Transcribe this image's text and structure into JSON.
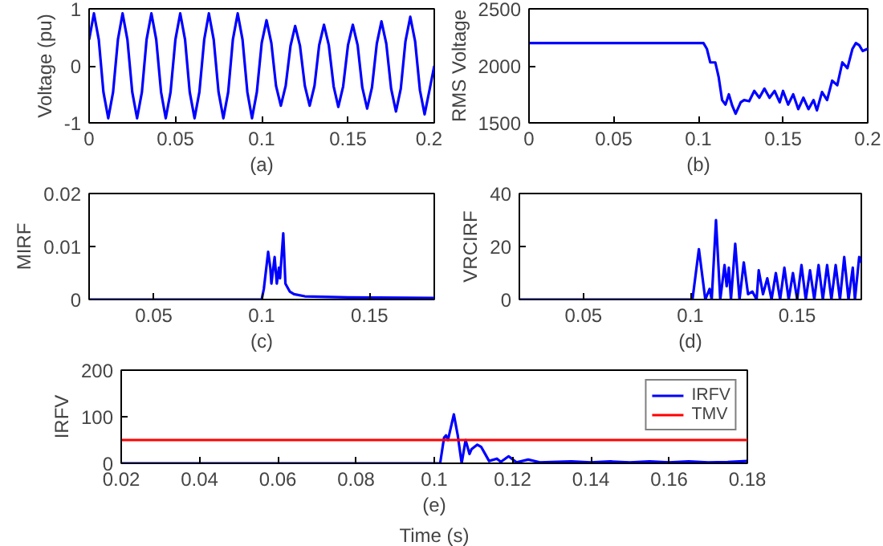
{
  "chart_data": [
    {
      "type": "line",
      "xlabel": "(a)",
      "ylabel": "Voltage (pu)",
      "xlim": [
        0,
        0.2
      ],
      "ylim": [
        -1,
        1
      ],
      "xticks": [
        0,
        0.05,
        0.1,
        0.15,
        0.2
      ],
      "yticks": [
        -1,
        0,
        1
      ],
      "x": [
        0,
        0.0028,
        0.0056,
        0.0083,
        0.0111,
        0.0139,
        0.0167,
        0.0194,
        0.0222,
        0.025,
        0.0278,
        0.0306,
        0.0333,
        0.0361,
        0.0389,
        0.0417,
        0.0444,
        0.0472,
        0.05,
        0.0528,
        0.0556,
        0.0583,
        0.0611,
        0.0639,
        0.0667,
        0.0694,
        0.0722,
        0.075,
        0.0778,
        0.0806,
        0.0833,
        0.0861,
        0.0889,
        0.0917,
        0.0944,
        0.0972,
        0.1,
        0.1028,
        0.1056,
        0.1083,
        0.1111,
        0.1139,
        0.1167,
        0.1194,
        0.1222,
        0.125,
        0.1278,
        0.1306,
        0.1333,
        0.1361,
        0.1389,
        0.1417,
        0.1444,
        0.1472,
        0.15,
        0.1528,
        0.1556,
        0.1583,
        0.1611,
        0.1639,
        0.1667,
        0.1694,
        0.1722,
        0.175,
        0.1778,
        0.1806,
        0.1833,
        0.1861,
        0.1889,
        0.1917,
        0.1944,
        0.1972,
        0.2
      ],
      "series": [
        {
          "color": "#0000ff",
          "values": [
            0.46,
            0.92,
            0.46,
            -0.46,
            -0.92,
            -0.46,
            0.46,
            0.92,
            0.46,
            -0.46,
            -0.92,
            -0.46,
            0.46,
            0.92,
            0.46,
            -0.46,
            -0.92,
            -0.46,
            0.46,
            0.92,
            0.46,
            -0.46,
            -0.92,
            -0.46,
            0.46,
            0.92,
            0.46,
            -0.46,
            -0.92,
            -0.46,
            0.46,
            0.92,
            0.46,
            -0.46,
            -0.92,
            -0.46,
            0.4,
            0.8,
            0.4,
            -0.35,
            -0.7,
            -0.35,
            0.35,
            0.7,
            0.35,
            -0.35,
            -0.7,
            -0.35,
            0.36,
            0.72,
            0.36,
            -0.36,
            -0.72,
            -0.36,
            0.36,
            0.72,
            0.36,
            -0.38,
            -0.75,
            -0.38,
            0.39,
            0.78,
            0.39,
            -0.4,
            -0.8,
            -0.4,
            0.43,
            0.86,
            0.43,
            -0.43,
            -0.85,
            -0.43,
            0
          ]
        }
      ]
    },
    {
      "type": "line",
      "xlabel": "(b)",
      "ylabel": "RMS Voltage",
      "xlim": [
        0,
        0.2
      ],
      "ylim": [
        1500,
        2500
      ],
      "xticks": [
        0,
        0.05,
        0.1,
        0.15,
        0.2
      ],
      "yticks": [
        1500,
        2000,
        2500
      ],
      "x": [
        0,
        0.103,
        0.105,
        0.107,
        0.11,
        0.112,
        0.114,
        0.116,
        0.118,
        0.12,
        0.122,
        0.125,
        0.127,
        0.13,
        0.133,
        0.136,
        0.139,
        0.142,
        0.145,
        0.148,
        0.15,
        0.153,
        0.156,
        0.159,
        0.162,
        0.165,
        0.168,
        0.17,
        0.173,
        0.176,
        0.179,
        0.182,
        0.185,
        0.188,
        0.191,
        0.193,
        0.195,
        0.197,
        0.2
      ],
      "series": [
        {
          "color": "#0000ff",
          "values": [
            2200,
            2200,
            2150,
            2030,
            2030,
            1900,
            1700,
            1660,
            1750,
            1650,
            1580,
            1680,
            1700,
            1690,
            1780,
            1720,
            1800,
            1720,
            1780,
            1680,
            1780,
            1660,
            1750,
            1620,
            1720,
            1620,
            1700,
            1610,
            1770,
            1700,
            1870,
            1830,
            2030,
            1980,
            2150,
            2200,
            2180,
            2130,
            2150
          ]
        }
      ]
    },
    {
      "type": "line",
      "xlabel": "(c)",
      "ylabel": "MIRF",
      "xlim": [
        0.02,
        0.18
      ],
      "ylim": [
        0,
        0.02
      ],
      "xticks": [
        0.05,
        0.1,
        0.15
      ],
      "yticks": [
        0,
        0.01,
        0.02
      ],
      "x": [
        0.02,
        0.1,
        0.101,
        0.103,
        0.104,
        0.1045,
        0.106,
        0.107,
        0.108,
        0.1085,
        0.11,
        0.111,
        0.113,
        0.115,
        0.12,
        0.14,
        0.18
      ],
      "series": [
        {
          "color": "#0000ff",
          "values": [
            0,
            0,
            0.002,
            0.009,
            0.006,
            0.003,
            0.008,
            0.003,
            0.006,
            0.004,
            0.0125,
            0.003,
            0.0015,
            0.001,
            0.0006,
            0.0004,
            0.0003
          ]
        }
      ]
    },
    {
      "type": "line",
      "xlabel": "(d)",
      "ylabel": "VRCIRF",
      "xlim": [
        0.02,
        0.18
      ],
      "ylim": [
        0,
        40
      ],
      "xticks": [
        0.05,
        0.1,
        0.15
      ],
      "yticks": [
        0,
        20,
        40
      ],
      "x": [
        0.02,
        0.101,
        0.104,
        0.107,
        0.109,
        0.11,
        0.112,
        0.114,
        0.116,
        0.117,
        0.118,
        0.119,
        0.121,
        0.123,
        0.125,
        0.127,
        0.129,
        0.131,
        0.132,
        0.134,
        0.136,
        0.138,
        0.14,
        0.142,
        0.144,
        0.146,
        0.148,
        0.15,
        0.152,
        0.154,
        0.156,
        0.158,
        0.16,
        0.162,
        0.164,
        0.166,
        0.168,
        0.17,
        0.172,
        0.174,
        0.176,
        0.177,
        0.179,
        0.18
      ],
      "series": [
        {
          "color": "#0000ff",
          "values": [
            0,
            0,
            19,
            0,
            4,
            0,
            30,
            0,
            13,
            5,
            12,
            0,
            21,
            0,
            14,
            2,
            3,
            0,
            11,
            2,
            8,
            0,
            10,
            0,
            12,
            0,
            10,
            0,
            13,
            0,
            11,
            0,
            13,
            0,
            13,
            0,
            13,
            0,
            16,
            0,
            12,
            0,
            16,
            14
          ]
        }
      ]
    },
    {
      "type": "line",
      "xlabel": "(e)",
      "ylabel": "IRFV",
      "annotations": [
        "Time (s)"
      ],
      "xlim": [
        0.02,
        0.18
      ],
      "ylim": [
        0,
        200
      ],
      "xticks": [
        0.02,
        0.04,
        0.06,
        0.08,
        0.1,
        0.12,
        0.14,
        0.16,
        0.18
      ],
      "yticks": [
        0,
        100,
        200
      ],
      "legend": "top right",
      "series": [
        {
          "name": "IRFV",
          "color": "#0000ff",
          "x": [
            0.02,
            0.1015,
            0.1025,
            0.103,
            0.1035,
            0.105,
            0.106,
            0.107,
            0.108,
            0.109,
            0.1095,
            0.111,
            0.112,
            0.113,
            0.114,
            0.116,
            0.117,
            0.119,
            0.121,
            0.124,
            0.127,
            0.13,
            0.135,
            0.14,
            0.145,
            0.15,
            0.155,
            0.16,
            0.165,
            0.17,
            0.175,
            0.18
          ],
          "values": [
            0,
            0,
            55,
            60,
            50,
            105,
            60,
            0,
            50,
            20,
            30,
            40,
            35,
            20,
            5,
            10,
            3,
            15,
            2,
            8,
            2,
            3,
            4,
            2,
            4,
            2,
            4,
            2,
            4,
            2,
            3,
            5
          ]
        },
        {
          "name": "TMV",
          "color": "#ff0000",
          "x": [
            0.02,
            0.18
          ],
          "values": [
            50,
            50
          ]
        }
      ]
    }
  ]
}
